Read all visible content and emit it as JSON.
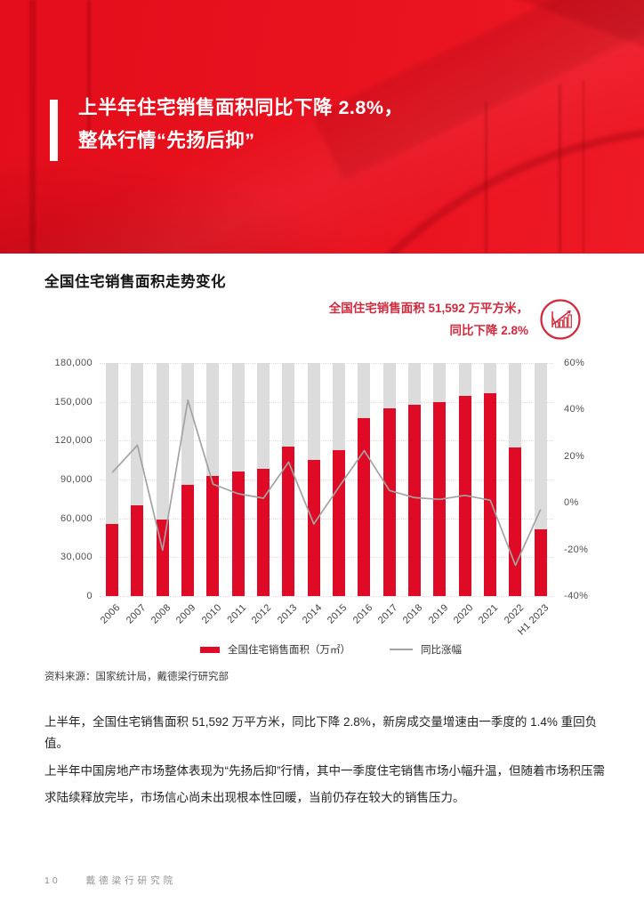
{
  "banner": {
    "title_line1": "上半年住宅销售面积同比下降 2.8%，",
    "title_line2": "整体行情“先扬后抑”"
  },
  "section": {
    "chart_title": "全国住宅销售面积走势变化",
    "annotation_line1": "全国住宅销售面积 51,592 万平方米，",
    "annotation_line2": "同比下降 2.8%",
    "annotation_icon": "growth-chart-circle-icon"
  },
  "source": "资料来源：国家统计局，戴德梁行研究部",
  "paragraphs": [
    "上半年，全国住宅销售面积 51,592 万平方米，同比下降 2.8%，新房成交量增速由一季度的 1.4% 重回负值。",
    "上半年中国房地产市场整体表现为“先扬后抑”行情，其中一季度住宅销售市场小幅升温，但随着市场积压需求陆续释放完毕，市场信心尚未出现根本性回暖，当前仍存在较大的销售压力。"
  ],
  "footer": {
    "page_number": "10",
    "footer_text": "戴德梁行研究院"
  },
  "colors": {
    "banner_red": "#e9121f",
    "accent_text_red": "#d02a3c",
    "bar_red": "#df0a26",
    "background_bar_gray": "#dcdcdc",
    "line_gray": "#a3a3a3",
    "axis_text": "#4f4f4f"
  },
  "chart_data": {
    "type": "bar",
    "categories": [
      "2006",
      "2007",
      "2008",
      "2009",
      "2010",
      "2011",
      "2012",
      "2013",
      "2014",
      "2015",
      "2016",
      "2017",
      "2018",
      "2019",
      "2020",
      "2021",
      "2022",
      "H1 2023"
    ],
    "series": [
      {
        "name": "全国住宅销售面积（万㎡）",
        "type": "bar",
        "values": [
          55400,
          70100,
          59300,
          86000,
          93000,
          96500,
          98500,
          115700,
          105000,
          112400,
          137500,
          144800,
          147900,
          150100,
          154900,
          156500,
          114600,
          51592
        ],
        "color": "#df0a26"
      },
      {
        "name": "同比涨幅",
        "type": "line",
        "values": [
          13.0,
          24.7,
          -20.3,
          44.0,
          8.0,
          3.9,
          2.0,
          17.5,
          -9.1,
          6.9,
          22.4,
          5.3,
          2.2,
          1.5,
          3.2,
          1.1,
          -26.8,
          -2.8
        ],
        "color": "#a3a3a3"
      }
    ],
    "left_axis": {
      "min": 0,
      "max": 180000,
      "ticks_top_down": [
        "180,000",
        "150,000",
        "120,000",
        "90,000",
        "60,000",
        "30,000",
        "0"
      ]
    },
    "right_axis": {
      "min": -40,
      "max": 60,
      "ticks_top_down": [
        "60%",
        "40%",
        "20%",
        "0%",
        "-20%",
        "-40%"
      ]
    },
    "grid": "horizontal-dotted",
    "legend_position": "bottom-center",
    "title": "全国住宅销售面积走势变化"
  }
}
